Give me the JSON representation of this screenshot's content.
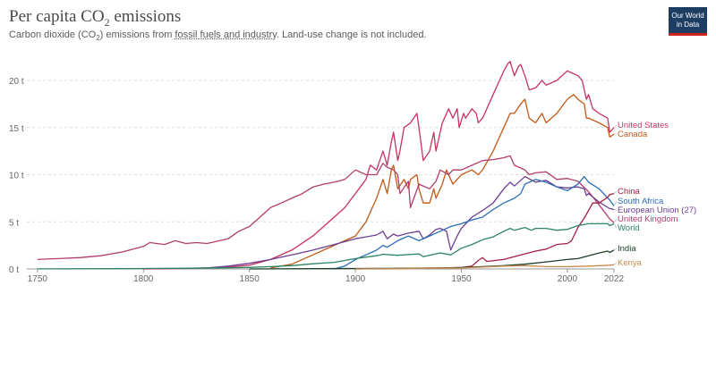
{
  "header": {
    "title_main": "Per capita CO",
    "title_sub": "2",
    "title_end": " emissions",
    "subtitle_pre": "Carbon dioxide (CO",
    "subtitle_sub": "2",
    "subtitle_mid": ") emissions from ",
    "subtitle_link": "fossil fuels and industry",
    "subtitle_post": ". Land-use change is not included.",
    "logo_line1": "Our World",
    "logo_line2": "in Data",
    "logo_color": "#1d3d63",
    "logo_accent": "#ce261e"
  },
  "chart_data": {
    "type": "line",
    "title": "Per capita CO₂ emissions",
    "xlim": [
      1745,
      2022
    ],
    "ylim": [
      0,
      22
    ],
    "y_ticks": [
      0,
      5,
      10,
      15,
      20
    ],
    "y_tick_labels": [
      "0 t",
      "5 t",
      "10 t",
      "15 t",
      "20 t"
    ],
    "x_ticks": [
      1750,
      1800,
      1850,
      1900,
      1950,
      2000,
      2022
    ],
    "x_tick_labels": [
      "1750",
      "1800",
      "1850",
      "1900",
      "1950",
      "2000",
      "2022"
    ],
    "grid": "horizontal-dashed",
    "legend": "right-side line labels",
    "series": [
      {
        "name": "United States",
        "color": "#c8325f",
        "x": [
          1800,
          1820,
          1840,
          1850,
          1860,
          1870,
          1880,
          1890,
          1895,
          1900,
          1905,
          1907,
          1910,
          1913,
          1915,
          1917,
          1918,
          1920,
          1921,
          1923,
          1926,
          1929,
          1930,
          1932,
          1935,
          1937,
          1938,
          1941,
          1944,
          1945,
          1946,
          1948,
          1949,
          1951,
          1952,
          1955,
          1957,
          1958,
          1960,
          1963,
          1965,
          1968,
          1970,
          1972,
          1973,
          1975,
          1977,
          1978,
          1980,
          1982,
          1985,
          1988,
          1990,
          1995,
          2000,
          2005,
          2007,
          2009,
          2010,
          2012,
          2015,
          2019,
          2020,
          2022
        ],
        "y": [
          0,
          0.05,
          0.2,
          0.4,
          1.0,
          2.0,
          3.5,
          5.5,
          6.5,
          8.0,
          9.5,
          11.0,
          10.5,
          12.5,
          11.0,
          13.5,
          14.5,
          11.5,
          12.5,
          15.0,
          15.5,
          16.5,
          15.0,
          11.5,
          12.5,
          14.5,
          12.5,
          15.5,
          17.0,
          16.5,
          16.0,
          17.0,
          15.0,
          16.5,
          16.0,
          17.0,
          16.5,
          15.5,
          16.0,
          17.5,
          18.5,
          20.0,
          21.0,
          21.8,
          22.0,
          20.5,
          21.5,
          21.7,
          20.5,
          19.0,
          19.2,
          20.0,
          19.5,
          20.0,
          21.0,
          20.5,
          20.0,
          18.0,
          18.5,
          17.0,
          16.5,
          16.0,
          14.5,
          15.0
        ],
        "label": "United States"
      },
      {
        "name": "Canada",
        "color": "#c05917",
        "x": [
          1860,
          1870,
          1880,
          1890,
          1900,
          1905,
          1908,
          1910,
          1913,
          1915,
          1917,
          1918,
          1920,
          1923,
          1925,
          1926,
          1929,
          1930,
          1932,
          1935,
          1937,
          1938,
          1941,
          1943,
          1945,
          1946,
          1948,
          1950,
          1955,
          1958,
          1960,
          1965,
          1968,
          1970,
          1973,
          1975,
          1978,
          1980,
          1982,
          1985,
          1988,
          1990,
          1995,
          2000,
          2003,
          2005,
          2008,
          2009,
          2010,
          2015,
          2019,
          2020,
          2022
        ],
        "y": [
          0.1,
          0.5,
          1.5,
          2.5,
          3.5,
          5.0,
          6.5,
          7.5,
          9.5,
          8.0,
          10.5,
          11.0,
          8.5,
          9.5,
          8.5,
          9.5,
          10.0,
          8.5,
          7.0,
          7.0,
          8.5,
          7.5,
          9.0,
          10.5,
          9.5,
          9.0,
          9.5,
          10.0,
          10.5,
          10.0,
          10.5,
          12.5,
          14.0,
          15.0,
          16.5,
          16.5,
          17.5,
          18.0,
          16.0,
          15.5,
          16.5,
          15.5,
          16.5,
          18.0,
          18.5,
          18.0,
          17.5,
          16.0,
          16.0,
          15.5,
          15.0,
          14.0,
          14.3
        ],
        "label": "Canada"
      },
      {
        "name": "United Kingdom",
        "color": "#b13d6e",
        "x": [
          1750,
          1760,
          1770,
          1780,
          1790,
          1800,
          1803,
          1810,
          1815,
          1820,
          1825,
          1830,
          1840,
          1845,
          1850,
          1855,
          1860,
          1865,
          1870,
          1875,
          1880,
          1885,
          1890,
          1895,
          1900,
          1905,
          1910,
          1913,
          1915,
          1918,
          1920,
          1921,
          1925,
          1926,
          1930,
          1935,
          1938,
          1940,
          1944,
          1946,
          1950,
          1955,
          1960,
          1965,
          1970,
          1973,
          1975,
          1980,
          1982,
          1985,
          1990,
          1995,
          2000,
          2005,
          2010,
          2015,
          2020,
          2022
        ],
        "y": [
          1.0,
          1.1,
          1.2,
          1.4,
          1.8,
          2.4,
          2.8,
          2.6,
          3.0,
          2.7,
          2.8,
          2.7,
          3.2,
          4.0,
          4.5,
          5.5,
          6.5,
          7.0,
          7.5,
          8.0,
          8.7,
          9.0,
          9.2,
          9.5,
          10.5,
          10.0,
          10.0,
          11.2,
          10.8,
          10.5,
          10.0,
          8.0,
          9.3,
          6.5,
          9.0,
          8.5,
          9.3,
          10.5,
          10.0,
          10.5,
          10.5,
          11.0,
          11.5,
          11.6,
          11.8,
          12.0,
          11.0,
          10.5,
          10.0,
          10.2,
          10.3,
          9.5,
          9.6,
          9.3,
          8.2,
          6.8,
          5.3,
          4.9
        ],
        "label": "United Kingdom"
      },
      {
        "name": "European Union (27)",
        "color": "#6d3e91",
        "x": [
          1830,
          1840,
          1850,
          1860,
          1870,
          1880,
          1890,
          1900,
          1905,
          1910,
          1913,
          1915,
          1918,
          1920,
          1925,
          1930,
          1932,
          1935,
          1938,
          1940,
          1943,
          1945,
          1946,
          1948,
          1950,
          1955,
          1960,
          1965,
          1970,
          1973,
          1975,
          1978,
          1980,
          1985,
          1990,
          1995,
          2000,
          2005,
          2008,
          2009,
          2010,
          2015,
          2020,
          2022
        ],
        "y": [
          0.1,
          0.3,
          0.6,
          1.0,
          1.5,
          2.0,
          2.6,
          3.2,
          3.4,
          3.6,
          4.0,
          3.2,
          3.7,
          3.5,
          3.8,
          4.0,
          3.2,
          3.6,
          4.2,
          4.3,
          4.0,
          2.0,
          2.5,
          3.5,
          4.3,
          5.5,
          6.2,
          7.0,
          8.5,
          9.2,
          8.8,
          9.4,
          9.8,
          9.2,
          9.4,
          8.7,
          8.6,
          8.7,
          8.5,
          7.8,
          8.0,
          7.1,
          6.4,
          6.3
        ],
        "label": "European Union (27)"
      },
      {
        "name": "South Africa",
        "color": "#2b6db7",
        "x": [
          1890,
          1895,
          1900,
          1905,
          1910,
          1913,
          1915,
          1920,
          1925,
          1930,
          1935,
          1940,
          1945,
          1950,
          1955,
          1960,
          1965,
          1970,
          1975,
          1978,
          1980,
          1985,
          1990,
          1995,
          2000,
          2005,
          2008,
          2010,
          2015,
          2020,
          2022
        ],
        "y": [
          0,
          0.3,
          1.0,
          1.5,
          2.0,
          2.5,
          2.3,
          3.0,
          3.5,
          3.0,
          3.5,
          4.0,
          4.5,
          4.8,
          5.2,
          5.5,
          6.3,
          7.0,
          7.5,
          8.0,
          9.0,
          9.5,
          9.2,
          8.7,
          8.3,
          9.0,
          9.8,
          9.2,
          8.5,
          7.3,
          6.7
        ],
        "label": "South Africa"
      },
      {
        "name": "China",
        "color": "#a32043",
        "x": [
          1900,
          1920,
          1940,
          1950,
          1955,
          1958,
          1960,
          1962,
          1970,
          1975,
          1980,
          1985,
          1990,
          1995,
          2000,
          2002,
          2005,
          2008,
          2010,
          2012,
          2015,
          2019,
          2020,
          2022
        ],
        "y": [
          0,
          0.05,
          0.1,
          0.15,
          0.3,
          0.9,
          1.2,
          0.8,
          1.0,
          1.3,
          1.6,
          1.9,
          2.1,
          2.6,
          2.7,
          3.0,
          4.4,
          5.4,
          6.2,
          7.0,
          7.0,
          7.6,
          7.9,
          8.0
        ],
        "label": "China"
      },
      {
        "name": "World",
        "color": "#2c8465",
        "x": [
          1750,
          1800,
          1820,
          1840,
          1850,
          1860,
          1870,
          1880,
          1890,
          1900,
          1910,
          1913,
          1920,
          1930,
          1932,
          1940,
          1945,
          1950,
          1955,
          1960,
          1965,
          1970,
          1973,
          1975,
          1980,
          1983,
          1985,
          1990,
          1995,
          2000,
          2005,
          2010,
          2015,
          2019,
          2020,
          2022
        ],
        "y": [
          0.01,
          0.05,
          0.08,
          0.12,
          0.16,
          0.25,
          0.35,
          0.55,
          0.7,
          1.1,
          1.4,
          1.55,
          1.45,
          1.6,
          1.3,
          1.7,
          1.5,
          2.2,
          2.6,
          3.1,
          3.4,
          4.0,
          4.3,
          4.1,
          4.4,
          4.1,
          4.3,
          4.3,
          4.1,
          4.2,
          4.6,
          4.8,
          4.8,
          4.8,
          4.6,
          4.8
        ],
        "label": "World"
      },
      {
        "name": "India",
        "color": "#1b3e27",
        "x": [
          1850,
          1900,
          1920,
          1940,
          1950,
          1960,
          1970,
          1980,
          1990,
          2000,
          2005,
          2010,
          2015,
          2019,
          2020,
          2022
        ],
        "y": [
          0,
          0.05,
          0.07,
          0.1,
          0.15,
          0.25,
          0.35,
          0.5,
          0.75,
          1.0,
          1.1,
          1.4,
          1.7,
          1.9,
          1.75,
          2.0
        ],
        "label": "India"
      },
      {
        "name": "Kenya",
        "color": "#c5894f",
        "x": [
          1900,
          1950,
          1960,
          1970,
          1980,
          1990,
          2000,
          2010,
          2020,
          2022
        ],
        "y": [
          0,
          0.1,
          0.2,
          0.3,
          0.35,
          0.25,
          0.25,
          0.3,
          0.4,
          0.45
        ],
        "label": "Kenya"
      }
    ]
  }
}
